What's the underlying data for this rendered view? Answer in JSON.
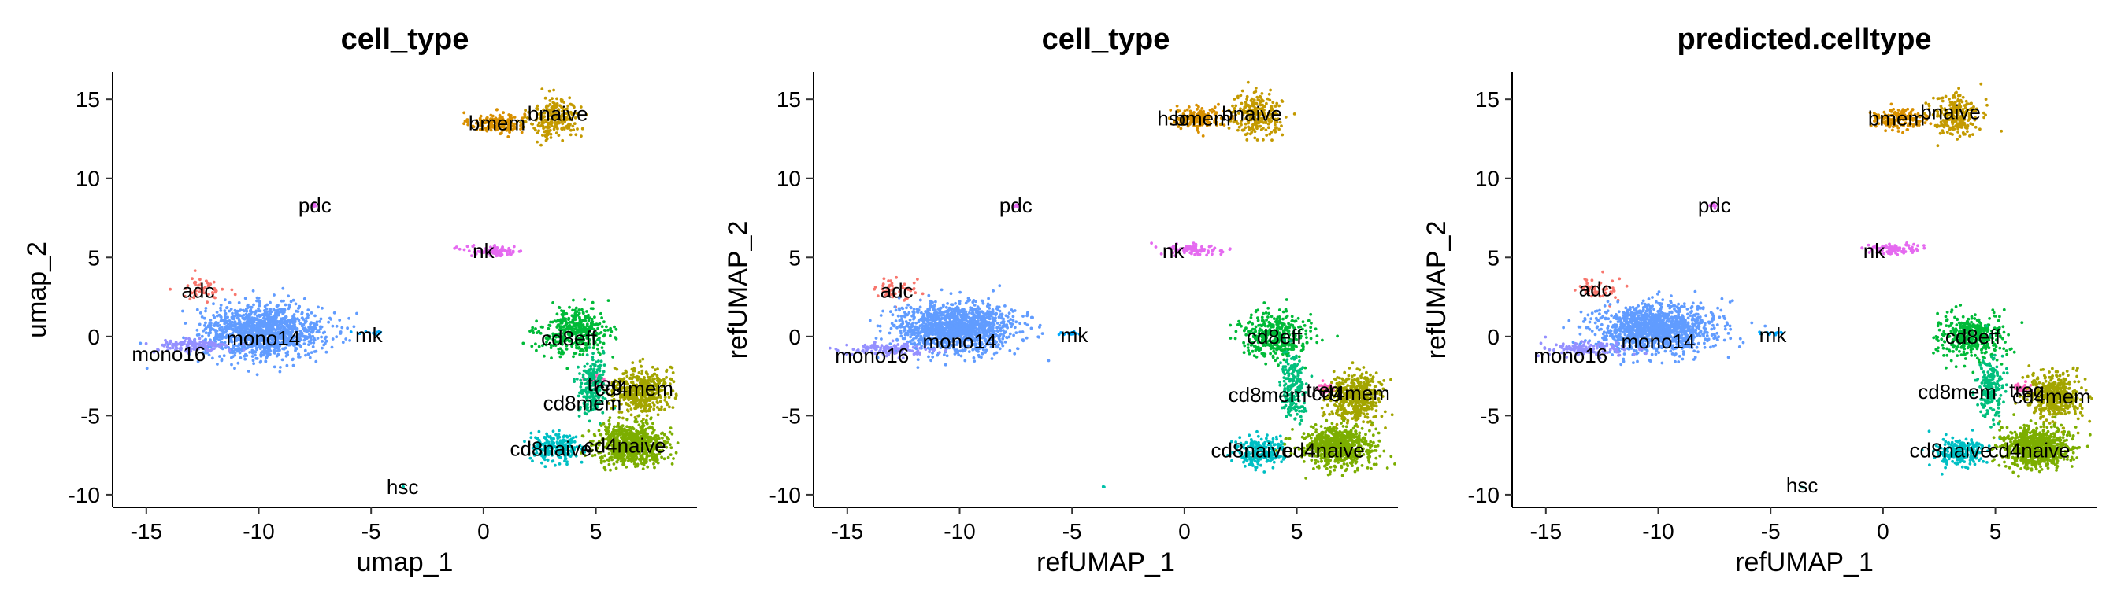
{
  "chart_data": [
    {
      "type": "scatter",
      "title": "cell_type",
      "xlabel": "umap_1",
      "ylabel": "umap_2",
      "xlim": [
        -16.5,
        9.5
      ],
      "ylim": [
        -10.8,
        16.7
      ],
      "xticks": [
        -15,
        -10,
        -5,
        0,
        5
      ],
      "yticks": [
        -10,
        -5,
        0,
        5,
        10,
        15
      ],
      "grid": false,
      "legend": "none",
      "clusters": [
        {
          "label": "bmem",
          "x": 0.6,
          "y": 13.5,
          "spread": [
            1.1,
            0.6
          ],
          "n": 160,
          "color": "#D89000"
        },
        {
          "label": "bnaive",
          "x": 3.2,
          "y": 13.8,
          "spread": [
            1.0,
            1.2
          ],
          "n": 240,
          "color": "#C49A00"
        },
        {
          "label": "pdc",
          "x": -7.5,
          "y": 8.3,
          "spread": [
            0.15,
            0.15
          ],
          "n": 8,
          "color": "#E76BF3"
        },
        {
          "label": "nk",
          "x": 0.5,
          "y": 5.4,
          "spread": [
            1.2,
            0.3
          ],
          "n": 90,
          "color": "#E56AF0"
        },
        {
          "label": "adc",
          "x": -12.5,
          "y": 3.0,
          "spread": [
            0.9,
            0.7
          ],
          "n": 50,
          "color": "#F8766D"
        },
        {
          "label": "mono14",
          "x": -9.8,
          "y": 0.3,
          "spread": [
            2.4,
            1.5
          ],
          "n": 1300,
          "color": "#619CFF"
        },
        {
          "label": "mono16",
          "x": -13.0,
          "y": -0.6,
          "spread": [
            1.6,
            0.4
          ],
          "n": 130,
          "color": "#9590FF"
        },
        {
          "label": "mk",
          "x": -5.0,
          "y": 0.2,
          "spread": [
            0.6,
            0.12
          ],
          "n": 12,
          "color": "#00A9FF"
        },
        {
          "label": "cd8eff",
          "x": 4.1,
          "y": 0.3,
          "spread": [
            1.4,
            1.3
          ],
          "n": 380,
          "color": "#00BA38"
        },
        {
          "label": "treg",
          "x": 4.9,
          "y": -2.8,
          "spread": [
            0.4,
            0.3
          ],
          "n": 30,
          "color": "#FF62BC"
        },
        {
          "label": "cd4mem",
          "x": 7.0,
          "y": -3.4,
          "spread": [
            1.1,
            1.3
          ],
          "n": 450,
          "color": "#A3A500"
        },
        {
          "label": "cd8mem",
          "x": 4.8,
          "y": -3.2,
          "spread": [
            0.5,
            1.8
          ],
          "n": 200,
          "color": "#00BF7D"
        },
        {
          "label": "cd8naive",
          "x": 3.2,
          "y": -7.0,
          "spread": [
            1.0,
            0.8
          ],
          "n": 220,
          "color": "#00BFC4"
        },
        {
          "label": "cd4naive",
          "x": 6.6,
          "y": -6.8,
          "spread": [
            1.4,
            1.1
          ],
          "n": 750,
          "color": "#7CAE00"
        },
        {
          "label": "hsc",
          "x": -3.6,
          "y": -9.5,
          "spread": [
            0.05,
            0.05
          ],
          "n": 2,
          "color": "#00C1A9"
        }
      ],
      "labels": [
        {
          "text": "bmem",
          "x": 0.6,
          "y": 13.5
        },
        {
          "text": "bnaive",
          "x": 3.3,
          "y": 14.1
        },
        {
          "text": "pdc",
          "x": -7.5,
          "y": 8.3
        },
        {
          "text": "nk",
          "x": 0.0,
          "y": 5.4
        },
        {
          "text": "adc",
          "x": -12.7,
          "y": 2.9
        },
        {
          "text": "mono14",
          "x": -9.8,
          "y": -0.1
        },
        {
          "text": "mono16",
          "x": -14.0,
          "y": -1.1
        },
        {
          "text": "mk",
          "x": -5.1,
          "y": 0.1
        },
        {
          "text": "cd8eff",
          "x": 3.8,
          "y": -0.1
        },
        {
          "text": "treg",
          "x": 5.4,
          "y": -3.0
        },
        {
          "text": "cd4mem",
          "x": 6.7,
          "y": -3.3
        },
        {
          "text": "cd8mem",
          "x": 4.4,
          "y": -4.2
        },
        {
          "text": "cd8naive",
          "x": 3.0,
          "y": -7.1
        },
        {
          "text": "cd4naive",
          "x": 6.3,
          "y": -6.9
        },
        {
          "text": "hsc",
          "x": -3.6,
          "y": -9.5
        }
      ]
    },
    {
      "type": "scatter",
      "title": "cell_type",
      "xlabel": "refUMAP_1",
      "ylabel": "refUMAP_2",
      "xlim": [
        -16.5,
        9.5
      ],
      "ylim": [
        -10.8,
        16.7
      ],
      "xticks": [
        -15,
        -10,
        -5,
        0,
        5
      ],
      "yticks": [
        -10,
        -5,
        0,
        5,
        10,
        15
      ],
      "grid": false,
      "legend": "none",
      "clusters": [
        {
          "label": "bmem",
          "x": 0.6,
          "y": 13.8,
          "spread": [
            1.1,
            0.6
          ],
          "n": 160,
          "color": "#D89000"
        },
        {
          "label": "bnaive",
          "x": 3.2,
          "y": 14.0,
          "spread": [
            1.0,
            1.2
          ],
          "n": 240,
          "color": "#C49A00"
        },
        {
          "label": "pdc",
          "x": -7.5,
          "y": 8.3,
          "spread": [
            0.15,
            0.15
          ],
          "n": 8,
          "color": "#E76BF3"
        },
        {
          "label": "nk",
          "x": 0.5,
          "y": 5.5,
          "spread": [
            1.2,
            0.3
          ],
          "n": 90,
          "color": "#E56AF0"
        },
        {
          "label": "adc",
          "x": -12.8,
          "y": 3.0,
          "spread": [
            0.9,
            0.7
          ],
          "n": 50,
          "color": "#F8766D"
        },
        {
          "label": "mono14",
          "x": -10.2,
          "y": 0.5,
          "spread": [
            2.4,
            1.4
          ],
          "n": 1300,
          "color": "#619CFF"
        },
        {
          "label": "mono16",
          "x": -13.2,
          "y": -0.8,
          "spread": [
            1.6,
            0.4
          ],
          "n": 130,
          "color": "#9590FF"
        },
        {
          "label": "mk",
          "x": -5.0,
          "y": 0.2,
          "spread": [
            0.6,
            0.12
          ],
          "n": 12,
          "color": "#00A9FF"
        },
        {
          "label": "cd8eff",
          "x": 4.0,
          "y": 0.0,
          "spread": [
            1.4,
            1.3
          ],
          "n": 380,
          "color": "#00BA38"
        },
        {
          "label": "treg",
          "x": 6.2,
          "y": -3.3,
          "spread": [
            0.4,
            0.3
          ],
          "n": 30,
          "color": "#FF62BC"
        },
        {
          "label": "cd4mem",
          "x": 7.6,
          "y": -3.8,
          "spread": [
            1.1,
            1.3
          ],
          "n": 450,
          "color": "#A3A500"
        },
        {
          "label": "cd8mem",
          "x": 4.8,
          "y": -3.2,
          "spread": [
            0.5,
            1.8
          ],
          "n": 200,
          "color": "#00BF7D"
        },
        {
          "label": "cd8naive",
          "x": 3.4,
          "y": -7.3,
          "spread": [
            1.0,
            0.8
          ],
          "n": 220,
          "color": "#00BFC4"
        },
        {
          "label": "cd4naive",
          "x": 6.8,
          "y": -7.0,
          "spread": [
            1.4,
            1.1
          ],
          "n": 750,
          "color": "#7CAE00"
        },
        {
          "label": "hsc",
          "x": -3.6,
          "y": -9.5,
          "spread": [
            0.05,
            0.05
          ],
          "n": 2,
          "color": "#00C1A9"
        }
      ],
      "labels": [
        {
          "text": "hsc",
          "x": -0.5,
          "y": 13.8
        },
        {
          "text": "bmem",
          "x": 0.8,
          "y": 13.8
        },
        {
          "text": "bnaive",
          "x": 3.0,
          "y": 14.1
        },
        {
          "text": "pdc",
          "x": -7.5,
          "y": 8.3
        },
        {
          "text": "nk",
          "x": -0.5,
          "y": 5.4
        },
        {
          "text": "adc",
          "x": -12.8,
          "y": 2.9
        },
        {
          "text": "mono14",
          "x": -10.0,
          "y": -0.3
        },
        {
          "text": "mono16",
          "x": -13.9,
          "y": -1.2
        },
        {
          "text": "mk",
          "x": -4.9,
          "y": 0.1
        },
        {
          "text": "cd8eff",
          "x": 4.0,
          "y": 0.0
        },
        {
          "text": "cd8mem",
          "x": 3.7,
          "y": -3.7
        },
        {
          "text": "treg",
          "x": 6.2,
          "y": -3.4
        },
        {
          "text": "cd4mem",
          "x": 7.4,
          "y": -3.6
        },
        {
          "text": "cd8naive",
          "x": 3.0,
          "y": -7.2
        },
        {
          "text": "cd4naive",
          "x": 6.2,
          "y": -7.2
        }
      ]
    },
    {
      "type": "scatter",
      "title": "predicted.celltype",
      "xlabel": "refUMAP_1",
      "ylabel": "refUMAP_2",
      "xlim": [
        -16.5,
        9.5
      ],
      "ylim": [
        -10.8,
        16.7
      ],
      "xticks": [
        -15,
        -10,
        -5,
        0,
        5
      ],
      "yticks": [
        -10,
        -5,
        0,
        5,
        10,
        15
      ],
      "grid": false,
      "legend": "none",
      "clusters": [
        {
          "label": "bmem",
          "x": 0.6,
          "y": 13.8,
          "spread": [
            1.1,
            0.6
          ],
          "n": 160,
          "color": "#D89000"
        },
        {
          "label": "bnaive",
          "x": 3.2,
          "y": 14.0,
          "spread": [
            1.0,
            1.2
          ],
          "n": 240,
          "color": "#C49A00"
        },
        {
          "label": "pdc",
          "x": -7.5,
          "y": 8.3,
          "spread": [
            0.15,
            0.15
          ],
          "n": 8,
          "color": "#E76BF3"
        },
        {
          "label": "nk",
          "x": 0.5,
          "y": 5.5,
          "spread": [
            1.2,
            0.3
          ],
          "n": 90,
          "color": "#E56AF0"
        },
        {
          "label": "adc",
          "x": -12.8,
          "y": 3.0,
          "spread": [
            0.9,
            0.7
          ],
          "n": 50,
          "color": "#F8766D"
        },
        {
          "label": "mono14",
          "x": -10.2,
          "y": 0.5,
          "spread": [
            2.4,
            1.4
          ],
          "n": 1300,
          "color": "#619CFF"
        },
        {
          "label": "mono16",
          "x": -13.2,
          "y": -0.8,
          "spread": [
            1.6,
            0.4
          ],
          "n": 130,
          "color": "#9590FF"
        },
        {
          "label": "mk",
          "x": -5.0,
          "y": 0.2,
          "spread": [
            0.6,
            0.12
          ],
          "n": 12,
          "color": "#00A9FF"
        },
        {
          "label": "cd8eff",
          "x": 4.0,
          "y": 0.0,
          "spread": [
            1.4,
            1.3
          ],
          "n": 380,
          "color": "#00BA38"
        },
        {
          "label": "treg",
          "x": 6.2,
          "y": -3.3,
          "spread": [
            0.4,
            0.3
          ],
          "n": 30,
          "color": "#FF62BC"
        },
        {
          "label": "cd4mem",
          "x": 7.6,
          "y": -3.8,
          "spread": [
            1.1,
            1.3
          ],
          "n": 450,
          "color": "#A3A500"
        },
        {
          "label": "cd8mem",
          "x": 4.8,
          "y": -3.2,
          "spread": [
            0.5,
            1.8
          ],
          "n": 200,
          "color": "#00BF7D"
        },
        {
          "label": "cd8naive",
          "x": 3.4,
          "y": -7.3,
          "spread": [
            1.0,
            0.8
          ],
          "n": 220,
          "color": "#00BFC4"
        },
        {
          "label": "cd4naive",
          "x": 6.8,
          "y": -7.0,
          "spread": [
            1.4,
            1.1
          ],
          "n": 750,
          "color": "#7CAE00"
        },
        {
          "label": "hsc",
          "x": -3.6,
          "y": -9.5,
          "spread": [
            0.05,
            0.05
          ],
          "n": 2,
          "color": "#00C1A9"
        }
      ],
      "labels": [
        {
          "text": "bmem",
          "x": 0.6,
          "y": 13.8
        },
        {
          "text": "bnaive",
          "x": 3.0,
          "y": 14.2
        },
        {
          "text": "pdc",
          "x": -7.5,
          "y": 8.3
        },
        {
          "text": "nk",
          "x": -0.4,
          "y": 5.4
        },
        {
          "text": "adc",
          "x": -12.8,
          "y": 3.0
        },
        {
          "text": "mono14",
          "x": -10.0,
          "y": -0.3
        },
        {
          "text": "mono16",
          "x": -13.9,
          "y": -1.2
        },
        {
          "text": "mk",
          "x": -4.9,
          "y": 0.1
        },
        {
          "text": "cd8eff",
          "x": 4.0,
          "y": 0.0
        },
        {
          "text": "cd8mem",
          "x": 3.3,
          "y": -3.5
        },
        {
          "text": "treg",
          "x": 6.4,
          "y": -3.4
        },
        {
          "text": "cd4mem",
          "x": 7.5,
          "y": -3.8
        },
        {
          "text": "cd8naive",
          "x": 3.0,
          "y": -7.2
        },
        {
          "text": "cd4naive",
          "x": 6.5,
          "y": -7.2
        },
        {
          "text": "hsc",
          "x": -3.6,
          "y": -9.4
        }
      ]
    }
  ]
}
